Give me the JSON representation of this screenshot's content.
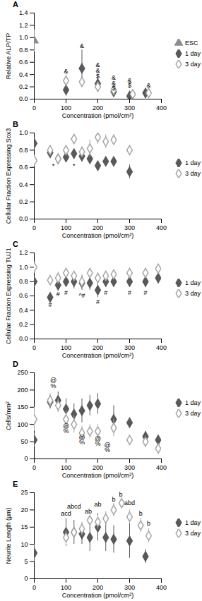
{
  "chart_data": [
    {
      "type": "scatter",
      "title": "A",
      "x_label": "Concentration (pmol/cm²)",
      "y_label": "Relative ALP/TP",
      "xlim": [
        0,
        400
      ],
      "xticks": [
        0,
        100,
        200,
        300,
        400
      ],
      "ylim": [
        0,
        1.4
      ],
      "yticks": [
        0,
        0.2,
        0.4,
        0.6,
        0.8,
        1,
        1.2,
        1.4
      ],
      "legend": "right",
      "series": [
        {
          "name": "ESC",
          "color": "#8c8c8c",
          "marker": "triangle",
          "x": [
            0
          ],
          "values": [
            0.95
          ],
          "errors": [
            0.18
          ]
        },
        {
          "name": "1 day",
          "color": "#595959",
          "marker": "diamond",
          "x": [
            100,
            150,
            200,
            250,
            300,
            350
          ],
          "values": [
            0.15,
            0.5,
            0.25,
            0.12,
            0.05,
            0.1
          ],
          "errors": [
            0.1,
            0.3,
            0.12,
            0.06,
            0.08,
            0.06
          ]
        },
        {
          "name": "3 day",
          "color": "#a6a6a6",
          "marker": "diamond-open",
          "x": [
            100,
            150,
            200,
            250,
            310,
            360
          ],
          "values": [
            0.3,
            0.28,
            0.2,
            0.15,
            0.08,
            0.1
          ],
          "errors": [
            0.1,
            0.08,
            0.06,
            0.05,
            0.05,
            0.05
          ]
        }
      ],
      "annotations": [
        {
          "text": "&",
          "x": 100,
          "y": 0.45
        },
        {
          "text": "&",
          "x": 150,
          "y": 0.86
        },
        {
          "text": "&",
          "x": 200,
          "y": 0.56
        },
        {
          "text": "&",
          "x": 200,
          "y": 0.46
        },
        {
          "text": "$",
          "x": 200,
          "y": 0.37
        },
        {
          "text": "&",
          "x": 250,
          "y": 0.35
        },
        {
          "text": "&",
          "x": 250,
          "y": 0.26
        },
        {
          "text": "$",
          "x": 250,
          "y": 0.18
        },
        {
          "text": "&",
          "x": 300,
          "y": 0.3
        },
        {
          "text": "$",
          "x": 300,
          "y": 0.22
        },
        {
          "text": "&",
          "x": 360,
          "y": 0.22
        }
      ]
    },
    {
      "type": "scatter",
      "title": "B",
      "x_label": "Concentration (pmol/cm²)",
      "y_label": "Cellular Fraction Expressing Sox3",
      "xlim": [
        0,
        400
      ],
      "xticks": [
        0,
        100,
        200,
        300,
        400
      ],
      "ylim": [
        0,
        1
      ],
      "yticks": [
        0,
        0.2,
        0.4,
        0.6,
        0.8,
        1
      ],
      "legend": "right",
      "series": [
        {
          "name": "1 day",
          "color": "#595959",
          "marker": "diamond",
          "x": [
            0,
            50,
            75,
            100,
            125,
            150,
            175,
            200,
            225,
            250,
            300
          ],
          "values": [
            0.88,
            0.77,
            0.7,
            0.72,
            0.76,
            0.73,
            0.7,
            0.62,
            0.67,
            0.67,
            0.55
          ],
          "errors": [
            0.05,
            0.05,
            0.05,
            0.05,
            0.05,
            0.06,
            0.05,
            0.05,
            0.05,
            0.05,
            0.08
          ]
        },
        {
          "name": "3 day",
          "color": "#a6a6a6",
          "marker": "diamond-open",
          "x": [
            0,
            50,
            75,
            100,
            125,
            150,
            175,
            200,
            225,
            250,
            300
          ],
          "values": [
            0.68,
            0.8,
            0.7,
            0.8,
            0.93,
            0.78,
            0.82,
            0.95,
            0.9,
            0.92,
            0.8
          ],
          "errors": [
            0.06,
            0.05,
            0.05,
            0.06,
            0.05,
            0.06,
            0.1,
            0.08,
            0.08,
            0.06,
            0.03
          ]
        }
      ],
      "annotations": [
        {
          "text": "*",
          "x": 60,
          "y": 0.62
        },
        {
          "text": "*",
          "x": 125,
          "y": 0.62
        }
      ]
    },
    {
      "type": "scatter",
      "title": "C",
      "x_label": "Concentration (pmol/cm²)",
      "y_label": "Cellular Fraction Expressing TUJ1",
      "xlim": [
        0,
        400
      ],
      "xticks": [
        0,
        100,
        200,
        300,
        400
      ],
      "ylim": [
        0,
        1.2
      ],
      "yticks": [
        0,
        0.2,
        0.4,
        0.6,
        0.8,
        1,
        1.2
      ],
      "legend": "right",
      "series": [
        {
          "name": "1 day",
          "color": "#595959",
          "marker": "diamond",
          "x": [
            0,
            50,
            75,
            100,
            125,
            150,
            175,
            200,
            225,
            250,
            300,
            350,
            390
          ],
          "values": [
            0.8,
            0.58,
            0.75,
            0.8,
            0.8,
            0.78,
            0.78,
            0.68,
            0.8,
            0.8,
            0.8,
            0.8,
            0.85
          ],
          "errors": [
            0.05,
            0.05,
            0.08,
            0.08,
            0.1,
            0.1,
            0.1,
            0.1,
            0.08,
            0.08,
            0.08,
            0.08,
            0.08
          ]
        },
        {
          "name": "3 day",
          "color": "#a6a6a6",
          "marker": "diamond-open",
          "x": [
            0,
            50,
            75,
            100,
            125,
            150,
            175,
            200,
            225,
            250,
            300,
            350,
            390
          ],
          "values": [
            1,
            0.82,
            0.85,
            0.92,
            0.88,
            0.8,
            0.92,
            0.85,
            0.88,
            0.9,
            0.92,
            0.92,
            0.98
          ],
          "errors": [
            0.04,
            0.05,
            0.08,
            0.05,
            0.06,
            0.1,
            0.06,
            0.08,
            0.06,
            0.05,
            0.05,
            0.05,
            0.04
          ]
        }
      ],
      "annotations": [
        {
          "text": "#",
          "x": 50,
          "y": 0.48
        },
        {
          "text": "#",
          "x": 75,
          "y": 0.62
        },
        {
          "text": "#",
          "x": 100,
          "y": 0.64
        },
        {
          "text": "^#",
          "x": 150,
          "y": 0.6
        },
        {
          "text": "#",
          "x": 200,
          "y": 0.52
        },
        {
          "text": "#",
          "x": 225,
          "y": 0.64
        },
        {
          "text": "#",
          "x": 300,
          "y": 0.64
        },
        {
          "text": "#",
          "x": 350,
          "y": 0.64
        }
      ]
    },
    {
      "type": "scatter",
      "title": "D",
      "x_label": "Concentration (pmol/cm²)",
      "y_label": "Cells/mm²",
      "xlim": [
        0,
        400
      ],
      "xticks": [
        0,
        100,
        200,
        300,
        400
      ],
      "ylim": [
        0,
        250
      ],
      "yticks": [
        0,
        50,
        100,
        150,
        200,
        250
      ],
      "legend": "right",
      "series": [
        {
          "name": "1 day",
          "color": "#595959",
          "marker": "diamond",
          "x": [
            0,
            50,
            75,
            100,
            125,
            150,
            175,
            200,
            250,
            300,
            350,
            390
          ],
          "values": [
            55,
            165,
            170,
            145,
            130,
            140,
            155,
            160,
            115,
            105,
            65,
            55
          ],
          "errors": [
            20,
            20,
            25,
            30,
            30,
            35,
            30,
            30,
            40,
            15,
            15,
            10
          ]
        },
        {
          "name": "3 day",
          "color": "#a6a6a6",
          "marker": "diamond-open",
          "x": [
            0,
            50,
            75,
            100,
            125,
            150,
            175,
            200,
            250,
            300,
            350,
            390
          ],
          "values": [
            115,
            170,
            155,
            115,
            100,
            75,
            80,
            80,
            90,
            55,
            50,
            30
          ],
          "errors": [
            35,
            20,
            20,
            25,
            25,
            20,
            20,
            20,
            25,
            10,
            10,
            15
          ]
        }
      ],
      "annotations": [
        {
          "text": "@",
          "x": 60,
          "y": 228
        },
        {
          "text": "%",
          "x": 60,
          "y": 212
        },
        {
          "text": "@",
          "x": 100,
          "y": 95
        },
        {
          "text": "%",
          "x": 100,
          "y": 80
        },
        {
          "text": "@",
          "x": 150,
          "y": 62
        },
        {
          "text": "%",
          "x": 150,
          "y": 47
        },
        {
          "text": "@",
          "x": 200,
          "y": 58
        },
        {
          "text": "%",
          "x": 200,
          "y": 43
        },
        {
          "text": "@",
          "x": 230,
          "y": 40
        },
        {
          "text": "%",
          "x": 230,
          "y": 25
        }
      ]
    },
    {
      "type": "scatter",
      "title": "E",
      "x_label": "Concentration (pmol/cm²)",
      "y_label": "Neurite Length (µm)",
      "xlim": [
        0,
        400
      ],
      "xticks": [
        0,
        100,
        200,
        300,
        400
      ],
      "ylim": [
        0,
        25
      ],
      "yticks": [
        0,
        5,
        10,
        15,
        20,
        25
      ],
      "legend": "right",
      "series": [
        {
          "name": "1 day",
          "color": "#595959",
          "marker": "diamond",
          "x": [
            0,
            100,
            125,
            150,
            175,
            200,
            225,
            250,
            300,
            350
          ],
          "values": [
            7.5,
            13.5,
            13.5,
            13,
            12,
            15,
            12,
            11.5,
            11,
            6.5
          ],
          "errors": [
            2.5,
            4,
            3.5,
            3,
            4,
            4,
            4,
            4,
            5,
            2
          ]
        },
        {
          "name": "3 day",
          "color": "#a6a6a6",
          "marker": "diamond-open",
          "x": [
            100,
            125,
            150,
            175,
            200,
            225,
            250,
            275,
            300,
            335,
            360
          ],
          "values": [
            12,
            13.5,
            14.5,
            17,
            16.5,
            17.5,
            20,
            22,
            18,
            15.5,
            12.5
          ],
          "errors": [
            2,
            2,
            2,
            1.5,
            2,
            2,
            2,
            1.5,
            2,
            2,
            2
          ]
        }
      ],
      "annotations": [
        {
          "text": "acd",
          "x": 100,
          "y": 19
        },
        {
          "text": "abcd",
          "x": 125,
          "y": 21
        },
        {
          "text": "ab",
          "x": 170,
          "y": 19.5
        },
        {
          "text": "ab",
          "x": 200,
          "y": 21.5
        },
        {
          "text": "b",
          "x": 250,
          "y": 23
        },
        {
          "text": "b",
          "x": 272,
          "y": 24.5
        },
        {
          "text": "abd",
          "x": 300,
          "y": 22
        },
        {
          "text": "b",
          "x": 335,
          "y": 19
        },
        {
          "text": "b",
          "x": 360,
          "y": 16
        }
      ]
    }
  ]
}
